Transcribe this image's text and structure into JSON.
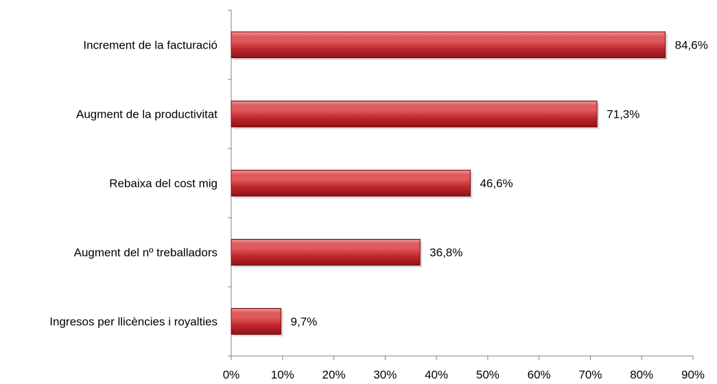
{
  "chart_data": {
    "type": "bar",
    "orientation": "horizontal",
    "categories": [
      "Increment de la facturació",
      "Augment de la productivitat",
      "Rebaixa del cost mig",
      "Augment del nº treballadors",
      "Ingresos per llicències i royalties"
    ],
    "values": [
      84.6,
      71.3,
      46.6,
      36.8,
      9.7
    ],
    "data_labels": [
      "84,6%",
      "71,3%",
      "46,6%",
      "36,8%",
      "9,7%"
    ],
    "xlim": [
      0,
      90
    ],
    "xticks": [
      0,
      10,
      20,
      30,
      40,
      50,
      60,
      70,
      80,
      90
    ],
    "xtick_labels": [
      "0%",
      "10%",
      "20%",
      "30%",
      "40%",
      "50%",
      "60%",
      "70%",
      "80%",
      "90%"
    ],
    "title": "",
    "xlabel": "",
    "ylabel": "",
    "grid": false,
    "legend": "none",
    "bar_color": "#c0282d"
  }
}
